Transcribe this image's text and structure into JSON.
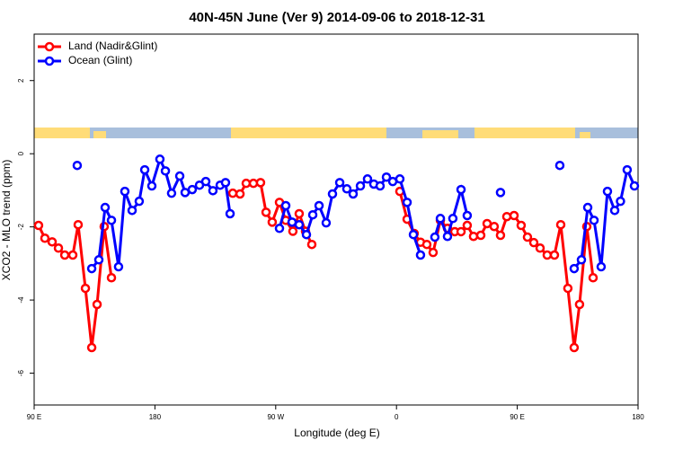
{
  "chart_data": {
    "type": "line",
    "title": "40N-45N June (Ver 9)   2014-09-06 to 2018-12-31",
    "x_label": "Longitude (deg E)",
    "y_label": "XCO2 - MLO trend (ppm)",
    "xlim": [
      90,
      540
    ],
    "xticks": [
      {
        "value": 90,
        "label": "90 E"
      },
      {
        "value": 180,
        "label": "180"
      },
      {
        "value": 270,
        "label": "90 W"
      },
      {
        "value": 360,
        "label": "0"
      },
      {
        "value": 450,
        "label": "90 E"
      },
      {
        "value": 540,
        "label": "180"
      }
    ],
    "ylim": [
      -6.87,
      3.27
    ],
    "yticks": [
      -6,
      -4,
      -2,
      0,
      2
    ],
    "legend": "topleft",
    "series": [
      {
        "name": "Land (Nadir&Glint)",
        "color": "#ff0000",
        "x": [
          93.3,
          98.0,
          103.4,
          108.1,
          112.8,
          118.8,
          122.8,
          128.2,
          132.9,
          136.9,
          142.2,
          147.6,
          null,
          238.0,
          243.4,
          248.0,
          253.4,
          258.7,
          262.8,
          267.4,
          272.8,
          277.5,
          282.8,
          287.5,
          292.2,
          296.9,
          null,
          362.5,
          367.9,
          373.2,
          377.9,
          382.6,
          387.3,
          392.7,
          398.0,
          403.4,
          408.1,
          412.7,
          417.4,
          422.8,
          427.5,
          432.8,
          437.5,
          442.2,
          447.6,
          452.9,
          457.6,
          462.3,
          467.0,
          472.3,
          477.7,
          482.4,
          487.7,
          492.4,
          496.4,
          501.8,
          506.5
        ],
        "values": [
          -1.96,
          -2.31,
          -2.41,
          -2.58,
          -2.77,
          -2.77,
          -1.94,
          -3.68,
          -5.3,
          -4.12,
          -1.99,
          -3.39,
          null,
          -1.08,
          -1.1,
          -0.81,
          -0.81,
          -0.79,
          -1.6,
          -1.87,
          -1.33,
          -1.82,
          -2.12,
          -1.64,
          -2.12,
          -2.48,
          null,
          -1.03,
          -1.79,
          -2.18,
          -2.42,
          -2.48,
          -2.7,
          -1.82,
          -2.04,
          -2.13,
          -2.13,
          -1.96,
          -2.26,
          -2.23,
          -1.91,
          -1.99,
          -2.23,
          -1.72,
          -1.69,
          -1.96,
          -2.28,
          -2.43,
          -2.58,
          -2.77,
          -2.77,
          -1.94,
          -3.68,
          -5.3,
          -4.12,
          -1.99,
          -3.39
        ]
      },
      {
        "name": "Ocean (Glint)",
        "color": "#0000ff",
        "x": [
          122.1,
          null,
          132.9,
          138.2,
          142.9,
          147.6,
          152.9,
          157.6,
          163.0,
          168.3,
          172.4,
          177.7,
          183.7,
          187.8,
          192.4,
          198.5,
          202.5,
          207.8,
          213.2,
          217.9,
          223.2,
          228.6,
          232.6,
          236.0,
          null,
          272.8,
          277.5,
          282.2,
          287.5,
          292.9,
          297.6,
          302.3,
          307.6,
          312.3,
          317.7,
          323.0,
          327.7,
          333.1,
          338.4,
          343.1,
          347.8,
          352.5,
          357.2,
          362.5,
          367.9,
          372.6,
          377.9,
          null,
          388.6,
          392.7,
          398.0,
          402.0,
          408.1,
          412.7,
          null,
          437.5,
          null,
          481.7,
          null,
          492.4,
          497.8,
          502.5,
          507.2,
          512.5,
          517.2,
          522.6,
          526.9,
          531.9,
          537.3
        ],
        "values": [
          -0.32,
          null,
          -3.14,
          -2.9,
          -1.47,
          -1.82,
          -3.09,
          -1.03,
          -1.55,
          -1.3,
          -0.44,
          -0.88,
          -0.15,
          -0.47,
          -1.08,
          -0.61,
          -1.06,
          -0.98,
          -0.86,
          -0.76,
          -1.01,
          -0.86,
          -0.79,
          -1.64,
          null,
          -2.04,
          -1.42,
          -1.87,
          -1.94,
          -2.21,
          -1.67,
          -1.42,
          -1.89,
          -1.1,
          -0.79,
          -0.96,
          -1.1,
          -0.88,
          -0.69,
          -0.83,
          -0.88,
          -0.64,
          -0.76,
          -0.69,
          -1.33,
          -2.21,
          -2.77,
          null,
          -2.28,
          -1.77,
          -2.26,
          -1.77,
          -0.98,
          -1.69,
          null,
          -1.06,
          null,
          -0.32,
          null,
          -3.14,
          -2.9,
          -1.47,
          -1.82,
          -3.09,
          -1.03,
          -1.55,
          -1.3,
          -0.44,
          -0.88
        ]
      }
    ]
  }
}
